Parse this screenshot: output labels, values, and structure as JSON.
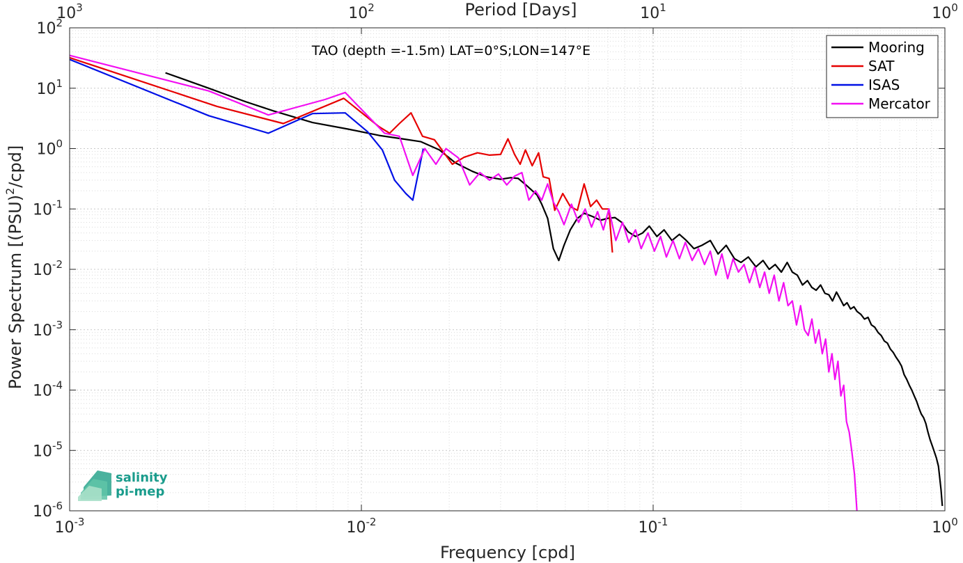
{
  "chart_data": {
    "type": "line",
    "title": "",
    "annotation": "TAO (depth =-1.5m) LAT=0°S;LON=147°E",
    "xlabel": "Frequency [cpd]",
    "ylabel_parts": {
      "base": "Power Spectrum [(PSU)",
      "sup": "2",
      "tail": "/cpd]"
    },
    "x2label": "Period [Days]",
    "xscale": "log",
    "yscale": "log",
    "xlim": [
      0.001,
      1
    ],
    "ylim": [
      1e-06,
      100
    ],
    "grid": true,
    "legend_position": "top-right",
    "x_ticks": [
      {
        "value": 0.001,
        "base": "10",
        "exp": "-3"
      },
      {
        "value": 0.01,
        "base": "10",
        "exp": "-2"
      },
      {
        "value": 0.1,
        "base": "10",
        "exp": "-1"
      },
      {
        "value": 1,
        "base": "10",
        "exp": "0"
      }
    ],
    "x2_ticks": [
      {
        "value": 1000,
        "base": "10",
        "exp": "3"
      },
      {
        "value": 100,
        "base": "10",
        "exp": "2"
      },
      {
        "value": 10,
        "base": "10",
        "exp": "1"
      },
      {
        "value": 1,
        "base": "10",
        "exp": "0"
      }
    ],
    "y_ticks": [
      {
        "value": 100,
        "base": "10",
        "exp": "2"
      },
      {
        "value": 10,
        "base": "10",
        "exp": "1"
      },
      {
        "value": 1,
        "base": "10",
        "exp": "0"
      },
      {
        "value": 0.1,
        "base": "10",
        "exp": "-1"
      },
      {
        "value": 0.01,
        "base": "10",
        "exp": "-2"
      },
      {
        "value": 0.001,
        "base": "10",
        "exp": "-3"
      },
      {
        "value": 0.0001,
        "base": "10",
        "exp": "-4"
      },
      {
        "value": 1e-05,
        "base": "10",
        "exp": "-5"
      },
      {
        "value": 1e-06,
        "base": "10",
        "exp": "-6"
      }
    ],
    "series": [
      {
        "name": "Mooring",
        "color": "#000000",
        "x": [
          0.00213,
          0.003,
          0.004,
          0.005,
          0.0068,
          0.009,
          0.0115,
          0.0138,
          0.016,
          0.0185,
          0.021,
          0.024,
          0.0268,
          0.03,
          0.0325,
          0.0345,
          0.037,
          0.04,
          0.0415,
          0.0435,
          0.0455,
          0.0475,
          0.0495,
          0.052,
          0.055,
          0.058,
          0.062,
          0.066,
          0.07,
          0.074,
          0.078,
          0.082,
          0.087,
          0.092,
          0.097,
          0.103,
          0.109,
          0.116,
          0.123,
          0.13,
          0.138,
          0.147,
          0.157,
          0.167,
          0.178,
          0.19,
          0.2,
          0.212,
          0.225,
          0.238,
          0.25,
          0.262,
          0.275,
          0.288,
          0.3,
          0.312,
          0.325,
          0.338,
          0.35,
          0.362,
          0.375,
          0.388,
          0.4,
          0.412,
          0.425,
          0.438,
          0.45,
          0.462,
          0.475,
          0.488,
          0.5,
          0.515,
          0.53,
          0.545,
          0.56,
          0.575,
          0.59,
          0.605,
          0.62,
          0.635,
          0.65,
          0.665,
          0.68,
          0.695,
          0.71,
          0.725,
          0.74,
          0.755,
          0.77,
          0.785,
          0.8,
          0.815,
          0.83,
          0.845,
          0.86,
          0.875,
          0.89,
          0.905,
          0.92,
          0.935,
          0.95,
          0.96,
          0.97,
          0.98
        ],
        "y": [
          18,
          10,
          6,
          4.2,
          2.7,
          2.1,
          1.65,
          1.45,
          1.3,
          0.95,
          0.58,
          0.42,
          0.34,
          0.31,
          0.33,
          0.32,
          0.24,
          0.17,
          0.12,
          0.07,
          0.022,
          0.014,
          0.025,
          0.045,
          0.07,
          0.085,
          0.075,
          0.065,
          0.07,
          0.072,
          0.06,
          0.042,
          0.035,
          0.04,
          0.052,
          0.035,
          0.045,
          0.03,
          0.038,
          0.03,
          0.022,
          0.025,
          0.03,
          0.018,
          0.025,
          0.015,
          0.013,
          0.016,
          0.011,
          0.014,
          0.01,
          0.012,
          0.009,
          0.013,
          0.009,
          0.008,
          0.0055,
          0.0065,
          0.005,
          0.0045,
          0.0055,
          0.004,
          0.0038,
          0.003,
          0.0042,
          0.0032,
          0.0025,
          0.0028,
          0.0022,
          0.0024,
          0.002,
          0.0018,
          0.0015,
          0.0016,
          0.0012,
          0.0011,
          0.0009,
          0.0008,
          0.00065,
          0.0006,
          0.00048,
          0.00042,
          0.00035,
          0.0003,
          0.00025,
          0.00018,
          0.00015,
          0.00012,
          0.0001,
          8e-05,
          6.5e-05,
          5e-05,
          4e-05,
          3.5e-05,
          2.8e-05,
          2e-05,
          1.5e-05,
          1.2e-05,
          9.5e-06,
          7.5e-06,
          5.5e-06,
          3.5e-06,
          2.2e-06,
          1.2e-06
        ]
      },
      {
        "name": "SAT",
        "color": "#e60000",
        "x": [
          0.001,
          0.0032,
          0.0054,
          0.0087,
          0.0115,
          0.0125,
          0.0135,
          0.0148,
          0.0162,
          0.0178,
          0.0192,
          0.0205,
          0.0225,
          0.025,
          0.0275,
          0.03,
          0.0318,
          0.0335,
          0.035,
          0.0365,
          0.0385,
          0.0405,
          0.042,
          0.044,
          0.046,
          0.049,
          0.052,
          0.055,
          0.058,
          0.061,
          0.064,
          0.067,
          0.0705,
          0.0725
        ],
        "y": [
          32,
          5,
          2.6,
          6.8,
          2.3,
          1.8,
          2.6,
          3.9,
          1.6,
          1.4,
          0.85,
          0.55,
          0.72,
          0.85,
          0.78,
          0.8,
          1.45,
          0.8,
          0.55,
          0.95,
          0.52,
          0.85,
          0.34,
          0.32,
          0.095,
          0.18,
          0.11,
          0.095,
          0.26,
          0.11,
          0.14,
          0.1,
          0.1,
          0.019
        ]
      },
      {
        "name": "ISAS",
        "color": "#0010e6",
        "x": [
          0.001,
          0.003,
          0.0048,
          0.0068,
          0.0088,
          0.0105,
          0.0118,
          0.013,
          0.0142,
          0.015,
          0.0163
        ],
        "y": [
          30,
          3.5,
          1.8,
          3.8,
          3.9,
          1.9,
          0.95,
          0.3,
          0.18,
          0.14,
          1.0
        ]
      },
      {
        "name": "Mercator",
        "color": "#f20ff2",
        "x": [
          0.001,
          0.003,
          0.0048,
          0.0075,
          0.0088,
          0.0105,
          0.012,
          0.0135,
          0.015,
          0.0165,
          0.018,
          0.0195,
          0.0215,
          0.0235,
          0.0255,
          0.0275,
          0.0295,
          0.0315,
          0.0335,
          0.0355,
          0.0375,
          0.0395,
          0.0415,
          0.0435,
          0.0455,
          0.0475,
          0.0495,
          0.0525,
          0.0555,
          0.0585,
          0.0615,
          0.0645,
          0.0675,
          0.0705,
          0.0745,
          0.0785,
          0.0825,
          0.087,
          0.091,
          0.096,
          0.101,
          0.106,
          0.111,
          0.117,
          0.123,
          0.129,
          0.136,
          0.143,
          0.15,
          0.157,
          0.164,
          0.172,
          0.18,
          0.188,
          0.196,
          0.205,
          0.214,
          0.223,
          0.232,
          0.241,
          0.25,
          0.26,
          0.27,
          0.28,
          0.29,
          0.3,
          0.31,
          0.32,
          0.33,
          0.34,
          0.35,
          0.36,
          0.37,
          0.38,
          0.39,
          0.4,
          0.41,
          0.42,
          0.43,
          0.44,
          0.45,
          0.46,
          0.47,
          0.48,
          0.49,
          0.5,
          0.505
        ],
        "y": [
          35,
          9,
          3.6,
          6.5,
          8.5,
          3.5,
          1.8,
          1.6,
          0.36,
          1.0,
          0.55,
          1.0,
          0.7,
          0.25,
          0.4,
          0.3,
          0.38,
          0.25,
          0.35,
          0.4,
          0.14,
          0.2,
          0.14,
          0.26,
          0.13,
          0.09,
          0.055,
          0.12,
          0.06,
          0.1,
          0.05,
          0.09,
          0.045,
          0.1,
          0.03,
          0.06,
          0.028,
          0.045,
          0.022,
          0.04,
          0.02,
          0.035,
          0.016,
          0.03,
          0.015,
          0.028,
          0.014,
          0.022,
          0.012,
          0.02,
          0.008,
          0.018,
          0.007,
          0.015,
          0.009,
          0.012,
          0.006,
          0.011,
          0.005,
          0.009,
          0.004,
          0.008,
          0.003,
          0.006,
          0.0025,
          0.003,
          0.0012,
          0.0025,
          0.001,
          0.0008,
          0.0015,
          0.0006,
          0.001,
          0.0004,
          0.0007,
          0.0002,
          0.0004,
          0.00015,
          0.0003,
          8e-05,
          0.00012,
          3e-05,
          2e-05,
          9.5e-06,
          4e-06,
          9e-07,
          1e-07
        ]
      }
    ]
  },
  "logo": {
    "line1": "salinity",
    "line2": "pi-mep"
  }
}
